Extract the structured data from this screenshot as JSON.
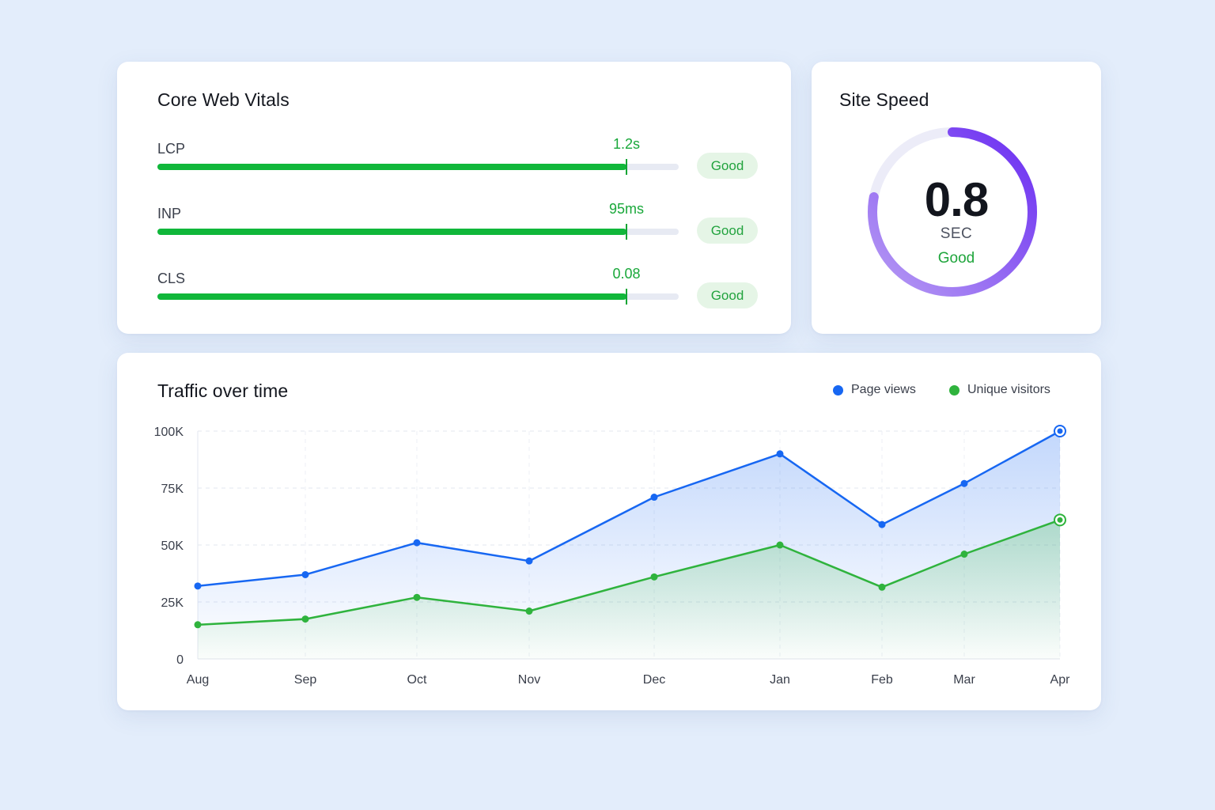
{
  "core_web_vitals": {
    "title": "Core Web Vitals",
    "metrics": [
      {
        "name": "LCP",
        "value": "1.2s",
        "level": 0.9,
        "status": "Good"
      },
      {
        "name": "INP",
        "value": "95ms",
        "level": 0.9,
        "status": "Good"
      },
      {
        "name": "CLS",
        "value": "0.08",
        "level": 0.9,
        "status": "Good"
      }
    ],
    "good_color": "#10b73a"
  },
  "site_speed": {
    "title": "Site Speed",
    "value": "0.8",
    "unit": "SEC",
    "status": "Good",
    "level": 0.78,
    "colors": [
      "#a98bf0",
      "#6a2cf2"
    ]
  },
  "traffic": {
    "title": "Traffic over time",
    "legend": [
      {
        "label": "Page views",
        "color": "#1767f2"
      },
      {
        "label": "Unique visitors",
        "color": "#2fb33d"
      }
    ]
  },
  "chart_data": {
    "type": "area",
    "title": "Traffic over time",
    "categories": [
      "Aug",
      "Sep",
      "Oct",
      "Nov",
      "Dec",
      "Jan",
      "Feb",
      "Mar",
      "Apr"
    ],
    "x_positions_by_month_index": [
      0,
      1,
      2,
      3,
      4,
      5,
      6,
      7,
      8
    ],
    "series": [
      {
        "name": "Page views",
        "values": [
          32000,
          37000,
          51000,
          43000,
          71000,
          90000,
          59000,
          77000,
          100000
        ],
        "color": "#1767f2"
      },
      {
        "name": "Unique visitors",
        "values": [
          15000,
          17500,
          27000,
          21000,
          36000,
          50000,
          31500,
          46000,
          61000
        ],
        "color": "#2fb33d"
      }
    ],
    "yticks": [
      "0",
      "25K",
      "50K",
      "75K",
      "100K"
    ],
    "ytick_values": [
      0,
      25000,
      50000,
      75000,
      100000
    ],
    "ylim": [
      0,
      100000
    ],
    "grid": true,
    "legend_position": "top-right"
  }
}
